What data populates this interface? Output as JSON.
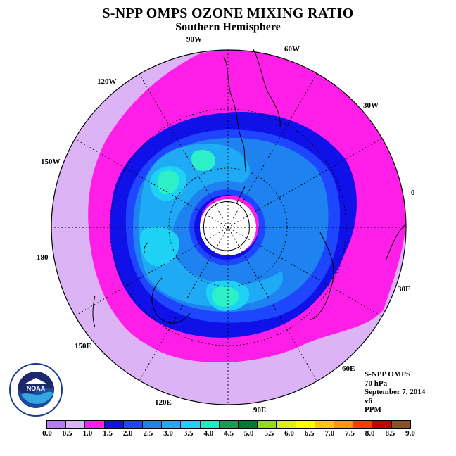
{
  "title": "S-NPP OMPS OZONE MIXING RATIO",
  "subtitle": "Southern Hemisphere",
  "longitude_labels": {
    "w90": "90W",
    "w60": "60W",
    "w30": "30W",
    "e0": "0",
    "w120": "120W",
    "w150": "150W",
    "e180": "180",
    "e30": "30E",
    "e60": "60E",
    "e90": "90E",
    "e120": "120E",
    "e150": "150E"
  },
  "info": {
    "instrument": "S-NPP OMPS",
    "level": "70 hPa",
    "date": "September 7, 2014",
    "version": "v6",
    "units": "PPM"
  },
  "logo": {
    "icon": "noaa-logo-icon",
    "text": "NOAA"
  },
  "colorbar": {
    "ticks": [
      "0.0",
      "0.5",
      "1.0",
      "1.5",
      "2.0",
      "2.5",
      "3.0",
      "3.5",
      "4.0",
      "4.5",
      "5.0",
      "5.5",
      "6.0",
      "6.5",
      "7.0",
      "7.5",
      "8.0",
      "8.5",
      "9.0"
    ],
    "colors": [
      "#b57ee8",
      "#dcb4f5",
      "#ff1ee8",
      "#1010e8",
      "#1e46ff",
      "#1e82f0",
      "#1eaaf5",
      "#1ed2f5",
      "#14f0c8",
      "#14a050",
      "#0a7832",
      "#96dc14",
      "#dcf014",
      "#ffff00",
      "#ffc80a",
      "#ff960a",
      "#ff3c00",
      "#c80000",
      "#8c5028"
    ]
  },
  "map_colors": {
    "outer": "#dcb4f5",
    "band_1_0": "#ff1ee8",
    "band_1_5": "#1010e8",
    "band_2_0": "#1e46ff",
    "band_2_5": "#1e82f0",
    "band_3_0": "#1eaaf5",
    "band_3_5": "#1ed2f5",
    "band_4_0": "#2cf0c8",
    "pole": "#ffffff"
  }
}
